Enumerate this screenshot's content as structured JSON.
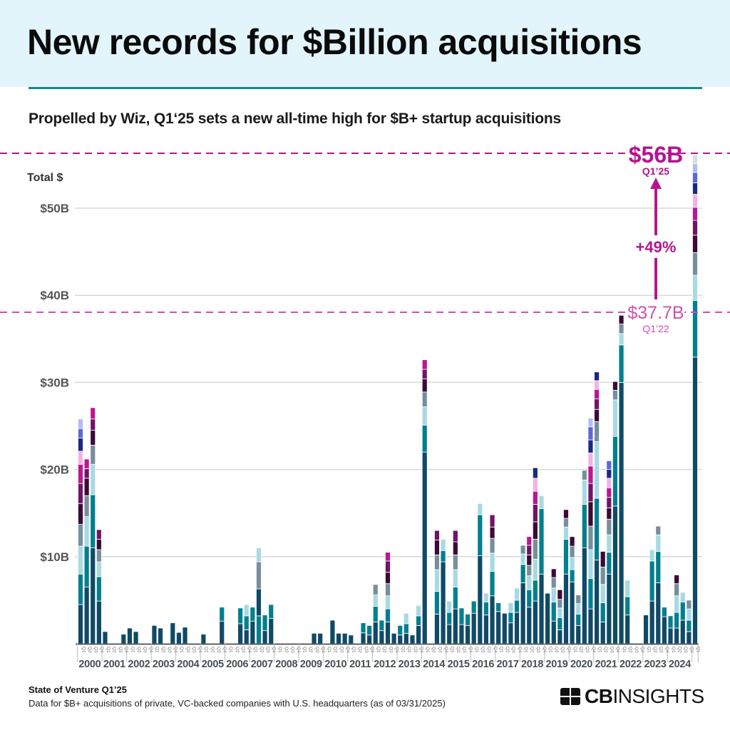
{
  "header": {
    "title": "New records for $Billion acquisitions",
    "subtitle": "Propelled by Wiz, Q1‘25 sets a new all-time high for $B+ startup acquisitions"
  },
  "footer": {
    "source_title": "State of Venture Q1’25",
    "note": "Data for $B+ acquisitions of private, VC-backed companies with U.S. headquarters (as of 03/31/2025)",
    "logo_text_bold": "CB",
    "logo_text": "INSIGHTS"
  },
  "annotations": {
    "record_value": "$56B",
    "record_period": "Q1’25",
    "change": "+49%",
    "prior_value": "$37.7B",
    "prior_period": "Q1’22",
    "color_record": "#b5158f",
    "color_prior": "#d14fb0"
  },
  "chart_data": {
    "type": "bar",
    "stacked": true,
    "ylabel": "Total $",
    "yticks": [
      10,
      20,
      30,
      40,
      50
    ],
    "ytick_labels": [
      "$10B",
      "$20B",
      "$30B",
      "$40B",
      "$50B"
    ],
    "ylim": [
      0,
      56
    ],
    "grid": true,
    "reference_lines": [
      56,
      37.7
    ],
    "quarter_labels": [
      "Q1",
      "Q2",
      "Q3",
      "Q4"
    ],
    "years": [
      "2000",
      "2001",
      "2002",
      "2003",
      "2004",
      "2005",
      "2006",
      "2007",
      "2008",
      "2009",
      "2010",
      "2011",
      "2012",
      "2013",
      "2014",
      "2015",
      "2016",
      "2017",
      "2018",
      "2019",
      "2020",
      "2021",
      "2022",
      "2023",
      "2024"
    ],
    "last_quarter_label": "Q1",
    "segment_colors": [
      "#0f4a66",
      "#007f8e",
      "#a9d9e2",
      "#788e9b",
      "#3b0a36",
      "#701467",
      "#ba1793",
      "#f2b3e3",
      "#1c2880",
      "#5a68d8",
      "#b4baf2",
      "#dddddd"
    ],
    "bars": [
      [
        [
          4.5,
          0
        ],
        [
          3.5,
          1
        ],
        [
          3.2,
          2
        ],
        [
          2.5,
          3
        ],
        [
          2.4,
          4
        ],
        [
          2.3,
          5
        ],
        [
          2.2,
          6
        ],
        [
          1.5,
          7
        ],
        [
          1.5,
          8
        ],
        [
          1.1,
          9
        ],
        [
          1.1,
          10
        ]
      ],
      [
        [
          6.5,
          0
        ],
        [
          4.7,
          1
        ],
        [
          3.4,
          2
        ],
        [
          2.4,
          3
        ],
        [
          2.0,
          4
        ],
        [
          1.1,
          5
        ],
        [
          1.1,
          6
        ]
      ],
      [
        [
          11.0,
          0
        ],
        [
          6.1,
          1
        ],
        [
          3.5,
          2
        ],
        [
          2.2,
          3
        ],
        [
          1.7,
          4
        ],
        [
          1.3,
          5
        ],
        [
          1.3,
          6
        ]
      ],
      [
        [
          4.9,
          0
        ],
        [
          2.8,
          1
        ],
        [
          1.7,
          2
        ],
        [
          1.4,
          3
        ],
        [
          1.2,
          4
        ],
        [
          1.1,
          5
        ]
      ],
      [
        [
          1.4,
          0
        ]
      ],
      [],
      [],
      [
        [
          1.1,
          0
        ]
      ],
      [
        [
          1.8,
          0
        ]
      ],
      [
        [
          1.4,
          0
        ]
      ],
      [],
      [],
      [
        [
          2.1,
          0
        ]
      ],
      [
        [
          1.8,
          0
        ]
      ],
      [],
      [
        [
          2.4,
          0
        ]
      ],
      [
        [
          1.3,
          0
        ]
      ],
      [
        [
          1.9,
          0
        ]
      ],
      [],
      [],
      [
        [
          1.1,
          0
        ]
      ],
      [],
      [],
      [
        [
          2.6,
          0
        ],
        [
          1.6,
          1
        ]
      ],
      [],
      [],
      [
        [
          2.3,
          0
        ],
        [
          1.8,
          1
        ]
      ],
      [
        [
          1.6,
          0
        ],
        [
          1.6,
          1
        ],
        [
          1.3,
          2
        ]
      ],
      [
        [
          2.6,
          0
        ],
        [
          1.6,
          1
        ]
      ],
      [
        [
          3.2,
          1
        ],
        [
          3.1,
          0
        ],
        [
          3.1,
          3
        ],
        [
          1.6,
          2
        ]
      ],
      [
        [
          1.5,
          0
        ],
        [
          1.8,
          1
        ]
      ],
      [
        [
          2.9,
          0
        ],
        [
          1.6,
          1
        ]
      ],
      [],
      [],
      [],
      [],
      [],
      [],
      [
        [
          1.2,
          0
        ]
      ],
      [
        [
          1.2,
          0
        ]
      ],
      [],
      [
        [
          2.7,
          0
        ]
      ],
      [
        [
          1.2,
          0
        ]
      ],
      [
        [
          1.2,
          0
        ]
      ],
      [
        [
          1.0,
          0
        ]
      ],
      [],
      [
        [
          1.25,
          0
        ],
        [
          1.15,
          1
        ]
      ],
      [
        [
          1.0,
          0
        ],
        [
          1.1,
          1
        ]
      ],
      [
        [
          2.5,
          0
        ],
        [
          1.8,
          1
        ],
        [
          1.3,
          2
        ],
        [
          1.2,
          3
        ]
      ],
      [
        [
          1.5,
          0
        ],
        [
          1.2,
          1
        ]
      ],
      [
        [
          2.5,
          0
        ],
        [
          1.5,
          1
        ],
        [
          1.5,
          2
        ],
        [
          1.4,
          3
        ],
        [
          1.3,
          4
        ],
        [
          1.3,
          5
        ],
        [
          1.0,
          6
        ]
      ],
      [
        [
          1.2,
          0
        ]
      ],
      [
        [
          1.0,
          0
        ],
        [
          1.1,
          1
        ]
      ],
      [
        [
          1.2,
          0
        ],
        [
          1.1,
          1
        ],
        [
          1.2,
          2
        ]
      ],
      [
        [
          1.0,
          0
        ]
      ],
      [
        [
          2.1,
          0
        ],
        [
          1.1,
          1
        ],
        [
          1.2,
          2
        ]
      ],
      [
        [
          22.0,
          0
        ],
        [
          3.1,
          1
        ],
        [
          2.1,
          2
        ],
        [
          1.7,
          3
        ],
        [
          1.5,
          4
        ],
        [
          1.1,
          5
        ],
        [
          1.1,
          6
        ]
      ],
      [],
      [
        [
          3.4,
          0
        ],
        [
          2.6,
          1
        ],
        [
          2.5,
          2
        ],
        [
          1.7,
          3
        ],
        [
          1.7,
          4
        ],
        [
          1.1,
          5
        ]
      ],
      [
        [
          9.4,
          0
        ],
        [
          1.3,
          1
        ],
        [
          1.3,
          2
        ]
      ],
      [
        [
          2.2,
          0
        ],
        [
          1.4,
          1
        ],
        [
          1.3,
          2
        ]
      ],
      [
        [
          4.0,
          0
        ],
        [
          2.5,
          1
        ],
        [
          2.0,
          2
        ],
        [
          1.7,
          3
        ],
        [
          1.5,
          4
        ],
        [
          1.3,
          5
        ]
      ],
      [
        [
          2.2,
          0
        ],
        [
          1.9,
          1
        ]
      ],
      [
        [
          2.1,
          0
        ],
        [
          1.3,
          1
        ]
      ],
      [
        [
          3.5,
          0
        ],
        [
          1.4,
          1
        ]
      ],
      [
        [
          10.1,
          0
        ],
        [
          4.7,
          1
        ],
        [
          1.3,
          2
        ]
      ],
      [
        [
          3.3,
          0
        ],
        [
          1.5,
          1
        ],
        [
          1.0,
          2
        ]
      ],
      [
        [
          5.5,
          0
        ],
        [
          2.8,
          1
        ],
        [
          2.1,
          2
        ],
        [
          1.7,
          3
        ],
        [
          1.3,
          4
        ],
        [
          1.4,
          5
        ]
      ],
      [
        [
          3.7,
          0
        ],
        [
          1.0,
          1
        ]
      ],
      [
        [
          3.5,
          0
        ]
      ],
      [
        [
          2.4,
          0
        ],
        [
          1.2,
          1
        ],
        [
          1.1,
          2
        ]
      ],
      [
        [
          3.6,
          0
        ],
        [
          1.4,
          1
        ],
        [
          1.4,
          2
        ]
      ],
      [
        [
          7.0,
          0
        ],
        [
          2.1,
          1
        ],
        [
          1.2,
          2
        ],
        [
          1.0,
          3
        ]
      ],
      [
        [
          4.2,
          0
        ],
        [
          2.0,
          1
        ],
        [
          1.6,
          2
        ],
        [
          1.2,
          3
        ],
        [
          1.2,
          4
        ],
        [
          1.1,
          5
        ],
        [
          1.0,
          6
        ]
      ],
      [
        [
          4.9,
          0
        ],
        [
          2.4,
          1
        ],
        [
          2.4,
          2
        ],
        [
          2.3,
          3
        ],
        [
          2.0,
          4
        ],
        [
          2.0,
          5
        ],
        [
          1.5,
          6
        ],
        [
          1.5,
          7
        ],
        [
          1.2,
          8
        ]
      ],
      [
        [
          8.0,
          0
        ],
        [
          7.5,
          1
        ],
        [
          1.5,
          2
        ]
      ],
      [
        [
          5.8,
          0
        ]
      ],
      [
        [
          2.6,
          0
        ],
        [
          2.2,
          1
        ],
        [
          1.6,
          2
        ],
        [
          1.2,
          3
        ],
        [
          1.0,
          4
        ]
      ],
      [
        [
          1.6,
          0
        ],
        [
          1.4,
          1
        ],
        [
          1.1,
          2
        ],
        [
          1.0,
          3
        ],
        [
          1.1,
          4
        ]
      ],
      [
        [
          8.0,
          0
        ],
        [
          4.0,
          1
        ],
        [
          1.4,
          2
        ],
        [
          1.0,
          3
        ],
        [
          1.0,
          4
        ]
      ],
      [
        [
          7.1,
          0
        ],
        [
          1.4,
          1
        ],
        [
          1.4,
          2
        ],
        [
          1.3,
          3
        ],
        [
          1.1,
          4
        ]
      ],
      [
        [
          2.1,
          0
        ],
        [
          1.3,
          1
        ],
        [
          1.2,
          2
        ],
        [
          1.0,
          3
        ]
      ],
      [
        [
          11.0,
          0
        ],
        [
          5.0,
          1
        ],
        [
          2.8,
          2
        ],
        [
          1.1,
          3
        ]
      ],
      [
        [
          4.0,
          0
        ],
        [
          3.5,
          1
        ],
        [
          3.3,
          2
        ],
        [
          2.7,
          3
        ],
        [
          2.8,
          4
        ],
        [
          2.1,
          5
        ],
        [
          2.0,
          6
        ],
        [
          1.5,
          7
        ],
        [
          1.5,
          8
        ],
        [
          1.5,
          9
        ],
        [
          1.0,
          10
        ]
      ],
      [
        [
          9.6,
          0
        ],
        [
          7.1,
          1
        ],
        [
          6.5,
          2
        ],
        [
          2.3,
          3
        ],
        [
          1.4,
          4
        ],
        [
          1.2,
          5
        ],
        [
          1.1,
          6
        ],
        [
          1.0,
          7
        ],
        [
          1.0,
          8
        ]
      ],
      [
        [
          2.5,
          0
        ],
        [
          2.2,
          1
        ],
        [
          2.1,
          2
        ],
        [
          2.0,
          3
        ],
        [
          1.8,
          4
        ]
      ],
      [
        [
          8.0,
          0
        ],
        [
          2.5,
          1
        ],
        [
          2.0,
          2
        ],
        [
          1.8,
          3
        ],
        [
          1.3,
          4
        ],
        [
          1.2,
          5
        ],
        [
          1.1,
          6
        ],
        [
          1.1,
          7
        ],
        [
          1.0,
          8
        ],
        [
          1.0,
          9
        ]
      ],
      [
        [
          15.8,
          0
        ],
        [
          8.0,
          1
        ],
        [
          4.2,
          2
        ],
        [
          1.1,
          3
        ],
        [
          1.0,
          4
        ]
      ],
      [
        [
          30.0,
          0
        ],
        [
          4.3,
          1
        ],
        [
          1.3,
          2
        ],
        [
          1.1,
          3
        ],
        [
          1.0,
          4
        ]
      ],
      [
        [
          3.3,
          0
        ],
        [
          2.1,
          1
        ],
        [
          1.9,
          2
        ]
      ],
      [],
      [],
      [
        [
          3.3,
          0
        ]
      ],
      [
        [
          4.9,
          0
        ],
        [
          4.6,
          1
        ],
        [
          1.3,
          2
        ]
      ],
      [
        [
          7.0,
          0
        ],
        [
          3.6,
          1
        ],
        [
          1.9,
          2
        ],
        [
          1.0,
          3
        ]
      ],
      [
        [
          3.1,
          0
        ],
        [
          1.1,
          1
        ]
      ],
      [
        [
          1.8,
          0
        ],
        [
          1.4,
          1
        ]
      ],
      [
        [
          1.8,
          0
        ],
        [
          1.8,
          1
        ],
        [
          1.9,
          2
        ],
        [
          1.4,
          3
        ],
        [
          1.0,
          4
        ]
      ],
      [
        [
          2.7,
          0
        ],
        [
          2.1,
          1
        ],
        [
          1.1,
          2
        ]
      ],
      [
        [
          1.4,
          0
        ],
        [
          1.3,
          1
        ],
        [
          1.3,
          2
        ],
        [
          1.0,
          3
        ]
      ],
      [
        [
          32.9,
          0
        ],
        [
          6.5,
          1
        ],
        [
          2.9,
          2
        ],
        [
          2.6,
          3
        ],
        [
          2.0,
          4
        ],
        [
          1.7,
          5
        ],
        [
          1.5,
          6
        ],
        [
          1.5,
          7
        ],
        [
          1.3,
          8
        ],
        [
          1.2,
          9
        ],
        [
          1.0,
          10
        ],
        [
          1.0,
          11
        ]
      ]
    ]
  }
}
